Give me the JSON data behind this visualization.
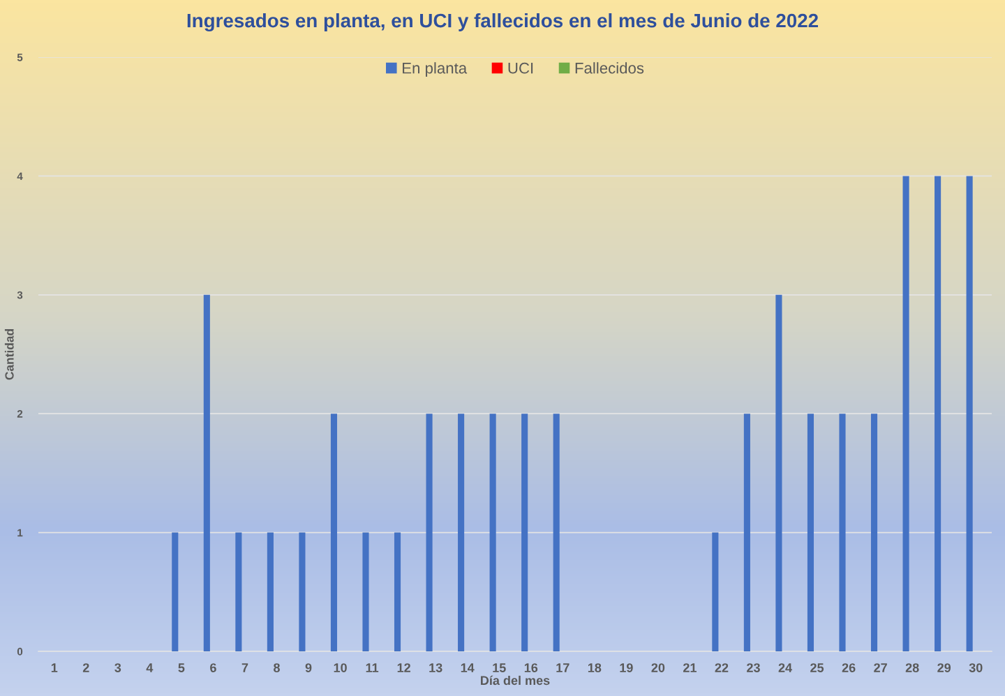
{
  "chart_data": {
    "type": "bar",
    "title": "Ingresados en planta, en UCI y fallecidos en el mes de Junio de 2022",
    "xlabel": "Día del mes",
    "ylabel": "Cantidad",
    "categories": [
      "1",
      "2",
      "3",
      "4",
      "5",
      "6",
      "7",
      "8",
      "9",
      "10",
      "11",
      "12",
      "13",
      "14",
      "15",
      "16",
      "17",
      "18",
      "19",
      "20",
      "21",
      "22",
      "23",
      "24",
      "25",
      "26",
      "27",
      "28",
      "29",
      "30"
    ],
    "series": [
      {
        "name": "En planta",
        "color": "#4472c4",
        "values": [
          0,
          0,
          0,
          0,
          1,
          3,
          1,
          1,
          1,
          2,
          1,
          1,
          2,
          2,
          2,
          2,
          2,
          0,
          0,
          0,
          0,
          1,
          2,
          3,
          2,
          2,
          2,
          4,
          4,
          4
        ]
      },
      {
        "name": "UCI",
        "color": "#ff0000",
        "values": [
          0,
          0,
          0,
          0,
          0,
          0,
          0,
          0,
          0,
          0,
          0,
          0,
          0,
          0,
          0,
          0,
          0,
          0,
          0,
          0,
          0,
          0,
          0,
          0,
          0,
          0,
          0,
          0,
          0,
          0
        ]
      },
      {
        "name": "Fallecidos",
        "color": "#70ad47",
        "values": [
          0,
          0,
          0,
          0,
          0,
          0,
          0,
          0,
          0,
          0,
          0,
          0,
          0,
          0,
          0,
          0,
          0,
          0,
          0,
          0,
          0,
          0,
          0,
          0,
          0,
          0,
          0,
          0,
          0,
          0
        ]
      }
    ],
    "ylim": [
      0,
      5
    ],
    "yticks": [
      0,
      1,
      2,
      3,
      4,
      5
    ],
    "grid": "y",
    "legend": "top"
  }
}
